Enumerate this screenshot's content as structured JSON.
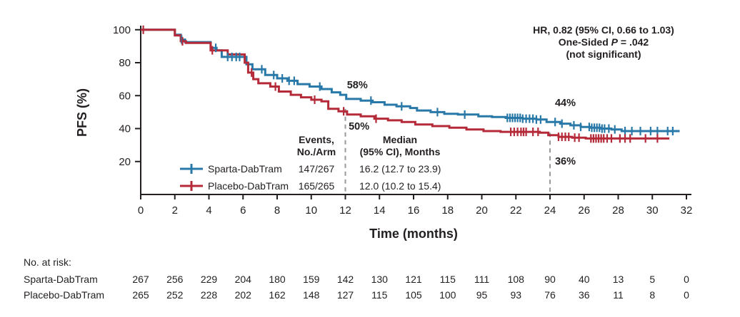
{
  "figure": {
    "annotation": {
      "line1": "HR, 0.82 (95% CI, 0.66 to 1.03)",
      "line2_prefix": "One-Sided ",
      "line2_italic": "P",
      "line2_suffix": " = .042",
      "line3": "(not significant)"
    },
    "legend": {
      "col1_header_line1": "Events,",
      "col1_header_line2": "No./Arm",
      "col2_header_line1": "Median",
      "col2_header_line2": "(95% CI), Months",
      "rows": [
        {
          "name": "Sparta-DabTram",
          "events": "147/267",
          "median": "16.2 (12.7 to 23.9)"
        },
        {
          "name": "Placebo-DabTram",
          "events": "165/265",
          "median": "12.0 (10.2 to 15.4)"
        }
      ]
    },
    "risk_table": {
      "title": "No. at risk:",
      "rows": [
        {
          "name": "Sparta-DabTram",
          "color": "#2878a8",
          "values": [
            267,
            256,
            229,
            204,
            180,
            159,
            142,
            130,
            121,
            115,
            111,
            108,
            90,
            40,
            13,
            5,
            0
          ]
        },
        {
          "name": "Placebo-DabTram",
          "color": "#b52a38",
          "values": [
            265,
            252,
            228,
            202,
            162,
            148,
            127,
            115,
            105,
            100,
            95,
            93,
            76,
            36,
            11,
            8,
            0
          ]
        }
      ]
    }
  },
  "chart_data": {
    "type": "line",
    "subtype": "kaplan-meier-step",
    "title": "",
    "xlabel": "Time (months)",
    "ylabel": "PFS (%)",
    "xlim": [
      0,
      32
    ],
    "xtick_step": 2,
    "yticks": [
      20,
      40,
      60,
      80,
      100
    ],
    "ylim": [
      0,
      100
    ],
    "grid": false,
    "legend_position": "inside-lower-left",
    "colors": {
      "sparta": "#2878a8",
      "placebo": "#b52a38",
      "axis": "#231f20",
      "dashed": "#999999"
    },
    "dashed_lines": [
      {
        "t": 12,
        "v_top": 52
      },
      {
        "t": 24,
        "v_top": 37.5
      }
    ],
    "callouts": [
      {
        "text": "58%",
        "series": "sparta",
        "t": 12.7,
        "v": 64.5
      },
      {
        "text": "50%",
        "series": "placebo",
        "t": 12.8,
        "v": 39.4
      },
      {
        "text": "44%",
        "series": "sparta",
        "t": 24.9,
        "v": 53.6
      },
      {
        "text": "36%",
        "series": "placebo",
        "t": 24.9,
        "v": 18.2
      }
    ],
    "series": [
      {
        "name": "Sparta-DabTram",
        "key": "sparta",
        "color": "#2878a8",
        "events_per_arm": "147/267",
        "median_months": "16.2 (12.7 to 23.9)",
        "steps": [
          [
            0,
            100
          ],
          [
            2.0,
            100
          ],
          [
            2.0,
            97
          ],
          [
            2.35,
            97
          ],
          [
            2.35,
            94
          ],
          [
            2.6,
            94
          ],
          [
            2.6,
            92.5
          ],
          [
            4.1,
            92.5
          ],
          [
            4.1,
            89
          ],
          [
            4.45,
            89
          ],
          [
            4.45,
            87.5
          ],
          [
            4.75,
            87.5
          ],
          [
            4.75,
            83.5
          ],
          [
            6.2,
            83.5
          ],
          [
            6.2,
            79
          ],
          [
            6.55,
            79
          ],
          [
            6.55,
            76
          ],
          [
            7.3,
            76
          ],
          [
            7.3,
            72.5
          ],
          [
            8.0,
            72.5
          ],
          [
            8.0,
            70.5
          ],
          [
            8.6,
            70.5
          ],
          [
            8.6,
            69
          ],
          [
            9.2,
            69
          ],
          [
            9.2,
            67
          ],
          [
            9.9,
            67
          ],
          [
            9.9,
            65.5
          ],
          [
            10.6,
            65.5
          ],
          [
            10.6,
            64
          ],
          [
            11.2,
            64
          ],
          [
            11.2,
            62
          ],
          [
            11.7,
            62
          ],
          [
            11.7,
            60.5
          ],
          [
            12.05,
            60.5
          ],
          [
            12.05,
            58
          ],
          [
            12.9,
            58
          ],
          [
            12.9,
            57
          ],
          [
            13.6,
            57
          ],
          [
            13.6,
            56
          ],
          [
            14.3,
            56
          ],
          [
            14.3,
            54.5
          ],
          [
            15.0,
            54.5
          ],
          [
            15.0,
            53.5
          ],
          [
            15.8,
            53.5
          ],
          [
            15.8,
            52.5
          ],
          [
            16.2,
            52.5
          ],
          [
            16.2,
            51
          ],
          [
            17.0,
            51
          ],
          [
            17.0,
            50
          ],
          [
            17.8,
            50
          ],
          [
            17.8,
            49
          ],
          [
            18.6,
            49
          ],
          [
            18.6,
            48.5
          ],
          [
            19.8,
            48.5
          ],
          [
            19.8,
            47.5
          ],
          [
            20.6,
            47.5
          ],
          [
            20.6,
            47
          ],
          [
            21.4,
            47
          ],
          [
            21.4,
            46.5
          ],
          [
            22.4,
            46.5
          ],
          [
            22.4,
            46
          ],
          [
            23.2,
            46
          ],
          [
            23.2,
            45.5
          ],
          [
            23.8,
            45.5
          ],
          [
            23.8,
            44
          ],
          [
            24.6,
            44
          ],
          [
            24.6,
            43
          ],
          [
            25.2,
            43
          ],
          [
            25.2,
            42
          ],
          [
            25.8,
            42
          ],
          [
            25.8,
            41
          ],
          [
            26.4,
            41
          ],
          [
            26.4,
            40.5
          ],
          [
            27.0,
            40.5
          ],
          [
            27.0,
            40
          ],
          [
            27.6,
            40
          ],
          [
            27.6,
            39.5
          ],
          [
            28.2,
            39.5
          ],
          [
            28.2,
            38.5
          ],
          [
            31.6,
            38.5
          ]
        ],
        "censors": [
          2.4,
          4.4,
          5.1,
          5.35,
          5.6,
          5.8,
          7.1,
          7.8,
          8.3,
          8.7,
          9.0,
          10.5,
          13.5,
          15.3,
          17.4,
          19.0,
          21.5,
          21.65,
          21.8,
          21.95,
          22.1,
          22.25,
          22.4,
          22.6,
          22.8,
          23.0,
          23.2,
          23.45,
          24.3,
          24.7,
          25.4,
          25.8,
          26.3,
          26.45,
          26.6,
          26.75,
          26.9,
          27.05,
          27.2,
          27.45,
          27.8,
          28.4,
          28.8,
          29.3,
          29.9,
          30.3,
          30.9,
          31.2
        ]
      },
      {
        "name": "Placebo-DabTram",
        "key": "placebo",
        "color": "#b52a38",
        "events_per_arm": "165/265",
        "median_months": "12.0 (10.2 to 15.4)",
        "steps": [
          [
            0,
            100
          ],
          [
            2.0,
            100
          ],
          [
            2.0,
            96.5
          ],
          [
            2.35,
            96.5
          ],
          [
            2.35,
            93
          ],
          [
            2.65,
            93
          ],
          [
            2.65,
            92
          ],
          [
            4.1,
            92
          ],
          [
            4.1,
            87.5
          ],
          [
            5.1,
            87.5
          ],
          [
            5.1,
            85
          ],
          [
            6.1,
            85
          ],
          [
            6.1,
            80
          ],
          [
            6.3,
            80
          ],
          [
            6.3,
            74
          ],
          [
            6.6,
            74
          ],
          [
            6.6,
            70
          ],
          [
            6.9,
            70
          ],
          [
            6.9,
            67.5
          ],
          [
            7.6,
            67.5
          ],
          [
            7.6,
            65.5
          ],
          [
            8.1,
            65.5
          ],
          [
            8.1,
            62.5
          ],
          [
            8.8,
            62.5
          ],
          [
            8.8,
            60.5
          ],
          [
            9.4,
            60.5
          ],
          [
            9.4,
            59
          ],
          [
            10.0,
            59
          ],
          [
            10.0,
            57.5
          ],
          [
            10.6,
            57.5
          ],
          [
            10.6,
            56.5
          ],
          [
            11.0,
            56.5
          ],
          [
            11.0,
            52
          ],
          [
            11.6,
            52
          ],
          [
            11.6,
            50.5
          ],
          [
            12.1,
            50.5
          ],
          [
            12.1,
            48.5
          ],
          [
            12.9,
            48.5
          ],
          [
            12.9,
            47.5
          ],
          [
            13.7,
            47.5
          ],
          [
            13.7,
            46
          ],
          [
            14.5,
            46
          ],
          [
            14.5,
            45
          ],
          [
            15.3,
            45
          ],
          [
            15.3,
            44
          ],
          [
            16.1,
            44
          ],
          [
            16.1,
            42.5
          ],
          [
            17.1,
            42.5
          ],
          [
            17.1,
            41.5
          ],
          [
            18.1,
            41.5
          ],
          [
            18.1,
            40.5
          ],
          [
            19.1,
            40.5
          ],
          [
            19.1,
            39.5
          ],
          [
            20.1,
            39.5
          ],
          [
            20.1,
            38.5
          ],
          [
            21.1,
            38.5
          ],
          [
            21.1,
            38
          ],
          [
            23.4,
            38
          ],
          [
            23.4,
            37.5
          ],
          [
            23.9,
            37.5
          ],
          [
            23.9,
            36
          ],
          [
            24.5,
            36
          ],
          [
            24.5,
            35
          ],
          [
            25.3,
            35
          ],
          [
            25.3,
            34.5
          ],
          [
            26.1,
            34.5
          ],
          [
            26.1,
            34
          ],
          [
            31.0,
            34
          ]
        ],
        "censors": [
          0.15,
          2.45,
          4.2,
          6.5,
          7.9,
          10.2,
          11.9,
          13.8,
          21.7,
          21.9,
          22.1,
          22.3,
          22.45,
          22.6,
          23.0,
          23.3,
          24.5,
          24.7,
          24.9,
          25.1,
          25.45,
          25.7,
          26.4,
          26.55,
          26.7,
          26.85,
          27.0,
          27.15,
          27.35,
          27.6,
          28.1,
          28.4,
          28.7,
          29.6,
          30.3
        ]
      }
    ]
  }
}
